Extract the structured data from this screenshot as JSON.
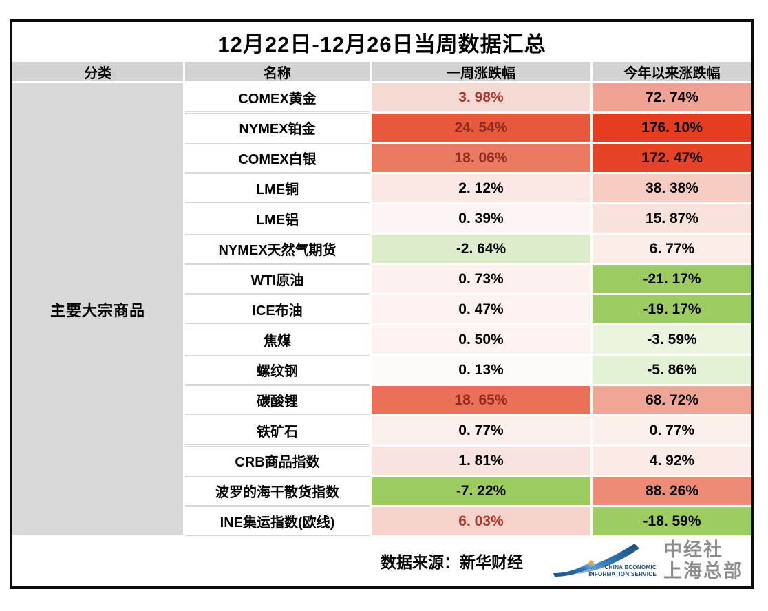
{
  "title": "12月22日-12月26日当周数据汇总",
  "columns": [
    "分类",
    "名称",
    "一周涨跌幅",
    "今年以来涨跌幅"
  ],
  "category": "主要大宗商品",
  "rows": [
    {
      "name": "COMEX黄金",
      "week": "3. 98%",
      "ytd": "72. 74%",
      "week_bg": "#F5DBD4",
      "week_color": "#AE362C",
      "ytd_bg": "#F0A294",
      "ytd_color": "#000000"
    },
    {
      "name": "NYMEX铂金",
      "week": "24. 54%",
      "ytd": "176. 10%",
      "week_bg": "#E7583D",
      "week_color": "#8C2A20",
      "ytd_bg": "#E63D22",
      "ytd_color": "#000000"
    },
    {
      "name": "COMEX白银",
      "week": "18. 06%",
      "ytd": "172. 47%",
      "week_bg": "#EB7A63",
      "week_color": "#942C21",
      "ytd_bg": "#E64227",
      "ytd_color": "#000000"
    },
    {
      "name": "LME铜",
      "week": "2. 12%",
      "ytd": "38. 38%",
      "week_bg": "#FAE8E4",
      "week_color": "#000000",
      "ytd_bg": "#F6CBC2",
      "ytd_color": "#000000"
    },
    {
      "name": "LME铝",
      "week": "0. 39%",
      "ytd": "15. 87%",
      "week_bg": "#FDF5F3",
      "week_color": "#000000",
      "ytd_bg": "#FAE2DC",
      "ytd_color": "#000000"
    },
    {
      "name": "NYMEX天然气期货",
      "week": "-2. 64%",
      "ytd": "6. 77%",
      "week_bg": "#DDEDCB",
      "week_color": "#000000",
      "ytd_bg": "#FBECE8",
      "ytd_color": "#000000"
    },
    {
      "name": "WTI原油",
      "week": "0. 73%",
      "ytd": "-21. 17%",
      "week_bg": "#FCF1EE",
      "week_color": "#000000",
      "ytd_bg": "#9CCB5F",
      "ytd_color": "#000000"
    },
    {
      "name": "ICE布油",
      "week": "0. 47%",
      "ytd": "-19. 17%",
      "week_bg": "#FCF3F1",
      "week_color": "#000000",
      "ytd_bg": "#9DCC61",
      "ytd_color": "#000000"
    },
    {
      "name": "焦煤",
      "week": "0. 50%",
      "ytd": "-3. 59%",
      "week_bg": "#FCF3F0",
      "week_color": "#000000",
      "ytd_bg": "#EAF4DF",
      "ytd_color": "#000000"
    },
    {
      "name": "螺纹钢",
      "week": "0. 13%",
      "ytd": "-5. 86%",
      "week_bg": "#FEFAF9",
      "week_color": "#000000",
      "ytd_bg": "#E3F1D5",
      "ytd_color": "#000000"
    },
    {
      "name": "碳酸锂",
      "week": "18. 65%",
      "ytd": "68. 72%",
      "week_bg": "#EA7057",
      "week_color": "#94291E",
      "ytd_bg": "#F0A697",
      "ytd_color": "#000000"
    },
    {
      "name": "铁矿石",
      "week": "0. 77%",
      "ytd": "0. 77%",
      "week_bg": "#FCF0ED",
      "week_color": "#000000",
      "ytd_bg": "#FCF0ED",
      "ytd_color": "#000000"
    },
    {
      "name": "CRB商品指数",
      "week": "1. 81%",
      "ytd": "4. 92%",
      "week_bg": "#F9E3DE",
      "week_color": "#000000",
      "ytd_bg": "#FBEBE7",
      "ytd_color": "#000000"
    },
    {
      "name": "波罗的海干散货指数",
      "week": "-7. 22%",
      "ytd": "88. 26%",
      "week_bg": "#9CCB5F",
      "week_color": "#000000",
      "ytd_bg": "#EE8B74",
      "ytd_color": "#000000"
    },
    {
      "name": "INE集运指数(欧线)",
      "week": "6. 03%",
      "ytd": "-18. 59%",
      "week_bg": "#F7D4CB",
      "week_color": "#B4342B",
      "ytd_bg": "#9DCC60",
      "ytd_color": "#000000"
    }
  ],
  "footer": {
    "source": "数据来源：新华财经",
    "logo_en_line1": "CHINA ECONOMIC",
    "logo_en_line2": "INFORMATION SERVICE",
    "logo_cn_line1": "中经社",
    "logo_cn_line2": "上海总部"
  },
  "colors": {
    "header_bg": "#D2D2D2",
    "category_bg": "#D9D9D9",
    "strong_positive": "#E63D22",
    "strong_negative": "#9CCB5F",
    "border": "#0A0A0A",
    "logo_blue_dark": "#1F4E79",
    "logo_blue": "#2E75B6",
    "logo_gray_text": "#8D8D8D"
  },
  "chart_data": {
    "type": "table",
    "title": "12月22日-12月26日当周数据汇总",
    "columns": [
      "分类",
      "名称",
      "一周涨跌幅",
      "今年以来涨跌幅"
    ],
    "category": "主要大宗商品",
    "legend_note": "heatmap fill: red = gain, green = loss, intensity by magnitude",
    "series": [
      {
        "name": "COMEX黄金",
        "week_pct": 3.98,
        "ytd_pct": 72.74
      },
      {
        "name": "NYMEX铂金",
        "week_pct": 24.54,
        "ytd_pct": 176.1
      },
      {
        "name": "COMEX白银",
        "week_pct": 18.06,
        "ytd_pct": 172.47
      },
      {
        "name": "LME铜",
        "week_pct": 2.12,
        "ytd_pct": 38.38
      },
      {
        "name": "LME铝",
        "week_pct": 0.39,
        "ytd_pct": 15.87
      },
      {
        "name": "NYMEX天然气期货",
        "week_pct": -2.64,
        "ytd_pct": 6.77
      },
      {
        "name": "WTI原油",
        "week_pct": 0.73,
        "ytd_pct": -21.17
      },
      {
        "name": "ICE布油",
        "week_pct": 0.47,
        "ytd_pct": -19.17
      },
      {
        "name": "焦煤",
        "week_pct": 0.5,
        "ytd_pct": -3.59
      },
      {
        "name": "螺纹钢",
        "week_pct": 0.13,
        "ytd_pct": -5.86
      },
      {
        "name": "碳酸锂",
        "week_pct": 18.65,
        "ytd_pct": 68.72
      },
      {
        "name": "铁矿石",
        "week_pct": 0.77,
        "ytd_pct": 0.77
      },
      {
        "name": "CRB商品指数",
        "week_pct": 1.81,
        "ytd_pct": 4.92
      },
      {
        "name": "波罗的海干散货指数",
        "week_pct": -7.22,
        "ytd_pct": 88.26
      },
      {
        "name": "INE集运指数(欧线)",
        "week_pct": 6.03,
        "ytd_pct": -18.59
      }
    ]
  }
}
